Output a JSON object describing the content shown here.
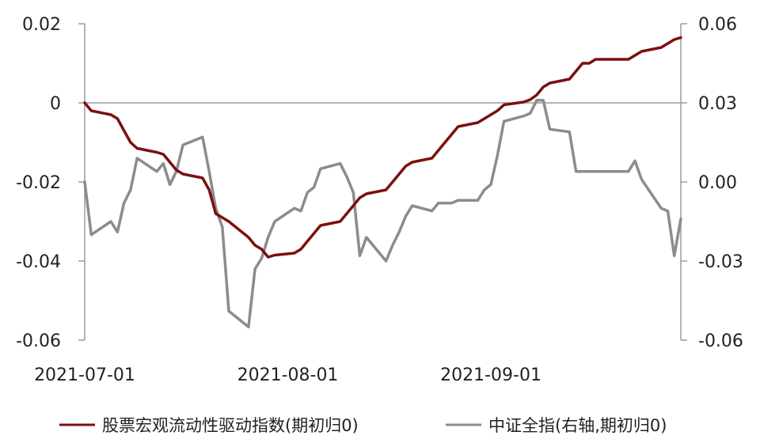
{
  "chart_data": {
    "type": "line",
    "title": "",
    "xlabel": "",
    "x_ticks": [
      "2021-07-01",
      "2021-08-01",
      "2021-09-01"
    ],
    "y_left": {
      "range": [
        -0.06,
        0.02
      ],
      "ticks": [
        -0.06,
        -0.04,
        -0.02,
        0,
        0.02
      ],
      "tick_labels": [
        "-0.06",
        "-0.04",
        "-0.02",
        "0",
        "0.02"
      ]
    },
    "y_right": {
      "range": [
        -0.06,
        0.06
      ],
      "ticks": [
        -0.06,
        -0.03,
        0.0,
        0.03,
        0.06
      ],
      "tick_labels": [
        "-0.06",
        "-0.03",
        "0.00",
        "0.03",
        "0.06"
      ]
    },
    "legend_position": "bottom",
    "series": [
      {
        "name": "股票宏观流动性驱动指数(期初归0)",
        "axis": "left",
        "color": "#7b1010",
        "x": [
          "2021-07-01",
          "2021-07-02",
          "2021-07-05",
          "2021-07-06",
          "2021-07-07",
          "2021-07-08",
          "2021-07-09",
          "2021-07-12",
          "2021-07-13",
          "2021-07-14",
          "2021-07-15",
          "2021-07-16",
          "2021-07-19",
          "2021-07-20",
          "2021-07-21",
          "2021-07-22",
          "2021-07-23",
          "2021-07-26",
          "2021-07-27",
          "2021-07-28",
          "2021-07-29",
          "2021-07-30",
          "2021-08-02",
          "2021-08-03",
          "2021-08-04",
          "2021-08-05",
          "2021-08-06",
          "2021-08-09",
          "2021-08-10",
          "2021-08-11",
          "2021-08-12",
          "2021-08-13",
          "2021-08-16",
          "2021-08-17",
          "2021-08-18",
          "2021-08-19",
          "2021-08-20",
          "2021-08-23",
          "2021-08-24",
          "2021-08-25",
          "2021-08-26",
          "2021-08-27",
          "2021-08-30",
          "2021-08-31",
          "2021-09-01",
          "2021-09-02",
          "2021-09-03",
          "2021-09-06",
          "2021-09-07",
          "2021-09-08",
          "2021-09-09",
          "2021-09-10",
          "2021-09-13",
          "2021-09-14",
          "2021-09-15",
          "2021-09-16",
          "2021-09-17",
          "2021-09-22",
          "2021-09-23",
          "2021-09-24",
          "2021-09-27",
          "2021-09-28",
          "2021-09-29",
          "2021-09-30"
        ],
        "values": [
          0,
          -0.002,
          -0.003,
          -0.004,
          -0.007,
          -0.01,
          -0.0115,
          -0.0125,
          -0.013,
          -0.015,
          -0.017,
          -0.018,
          -0.019,
          -0.022,
          -0.028,
          -0.029,
          -0.03,
          -0.034,
          -0.036,
          -0.037,
          -0.039,
          -0.0385,
          -0.038,
          -0.037,
          -0.035,
          -0.033,
          -0.031,
          -0.03,
          -0.028,
          -0.026,
          -0.024,
          -0.023,
          -0.022,
          -0.02,
          -0.018,
          -0.016,
          -0.015,
          -0.014,
          -0.012,
          -0.01,
          -0.008,
          -0.006,
          -0.005,
          -0.004,
          -0.003,
          -0.002,
          -0.0005,
          0.0002,
          0.0008,
          0.002,
          0.004,
          0.005,
          0.006,
          0.008,
          0.01,
          0.01,
          0.011,
          0.011,
          0.012,
          0.013,
          0.014,
          0.015,
          0.016,
          0.0165
        ]
      },
      {
        "name": "中证全指(右轴,期初归0)",
        "axis": "right",
        "color": "#8c8c8c",
        "x": [
          "2021-07-01",
          "2021-07-02",
          "2021-07-05",
          "2021-07-06",
          "2021-07-07",
          "2021-07-08",
          "2021-07-09",
          "2021-07-12",
          "2021-07-13",
          "2021-07-14",
          "2021-07-15",
          "2021-07-16",
          "2021-07-19",
          "2021-07-20",
          "2021-07-21",
          "2021-07-22",
          "2021-07-23",
          "2021-07-26",
          "2021-07-27",
          "2021-07-28",
          "2021-07-29",
          "2021-07-30",
          "2021-08-02",
          "2021-08-03",
          "2021-08-04",
          "2021-08-05",
          "2021-08-06",
          "2021-08-09",
          "2021-08-10",
          "2021-08-11",
          "2021-08-12",
          "2021-08-13",
          "2021-08-16",
          "2021-08-17",
          "2021-08-18",
          "2021-08-19",
          "2021-08-20",
          "2021-08-23",
          "2021-08-24",
          "2021-08-25",
          "2021-08-26",
          "2021-08-27",
          "2021-08-30",
          "2021-08-31",
          "2021-09-01",
          "2021-09-02",
          "2021-09-03",
          "2021-09-06",
          "2021-09-07",
          "2021-09-08",
          "2021-09-09",
          "2021-09-10",
          "2021-09-13",
          "2021-09-14",
          "2021-09-15",
          "2021-09-16",
          "2021-09-17",
          "2021-09-22",
          "2021-09-23",
          "2021-09-24",
          "2021-09-27",
          "2021-09-28",
          "2021-09-29",
          "2021-09-30"
        ],
        "values": [
          0,
          -0.02,
          -0.015,
          -0.019,
          -0.008,
          -0.003,
          0.009,
          0.004,
          0.007,
          -0.001,
          0.004,
          0.014,
          0.017,
          0.004,
          -0.01,
          -0.017,
          -0.049,
          -0.055,
          -0.033,
          -0.029,
          -0.021,
          -0.015,
          -0.01,
          -0.011,
          -0.004,
          -0.002,
          0.005,
          0.007,
          0.002,
          -0.004,
          -0.028,
          -0.021,
          -0.03,
          -0.024,
          -0.019,
          -0.013,
          -0.009,
          -0.011,
          -0.008,
          -0.008,
          -0.008,
          -0.007,
          -0.007,
          -0.003,
          -0.001,
          0.01,
          0.023,
          0.025,
          0.026,
          0.031,
          0.031,
          0.02,
          0.019,
          0.004,
          0.004,
          0.004,
          0.004,
          0.004,
          0.008,
          0.001,
          -0.01,
          -0.011,
          -0.028,
          -0.014
        ]
      }
    ]
  }
}
